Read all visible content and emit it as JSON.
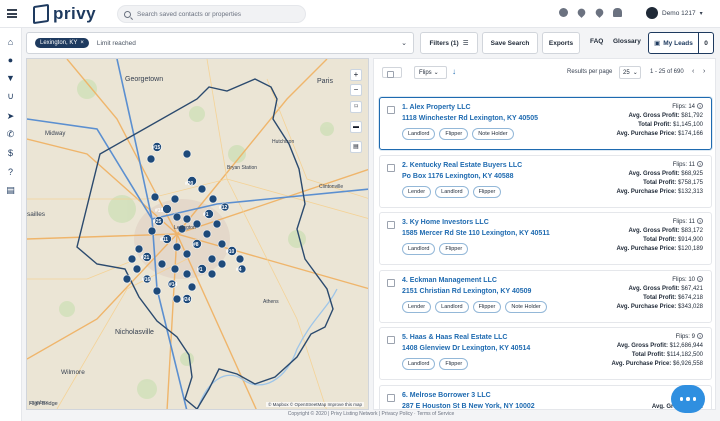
{
  "app": {
    "name": "privy"
  },
  "header": {
    "search_placeholder": "Search saved contacts or properties",
    "user_name": "Demo 1217",
    "icons": [
      "plus-circle-icon",
      "heart-icon",
      "map-pin-icon",
      "bell-icon"
    ]
  },
  "filters": {
    "location_chip": "Lexington, KY",
    "limit_text": "Limit reached",
    "filters_label": "Filters (1)",
    "save_search_label": "Save Search",
    "exports_label": "Exports",
    "faq_label": "FAQ",
    "glossary_label": "Glossary",
    "my_leads_label": "My Leads",
    "my_leads_count": "0"
  },
  "map": {
    "labels": {
      "georgetown": "Georgetown",
      "paris": "Paris",
      "midway": "Midway",
      "hutchison": "Hutchison",
      "bryan_station": "Bryan Station",
      "clintonville": "Clintonville",
      "lexington": "Lexington",
      "athens": "Athens",
      "nicholasville": "Nicholasville",
      "wilmore": "Wilmore",
      "versailles": "sailles",
      "high_bridge": "High Bridge"
    },
    "attribution": "© Mapbox © OpenStreetMap Improve this map",
    "logo_text": "mapbox",
    "markers": [
      "#15",
      "#20",
      "#18",
      "#25",
      "#11",
      "#8",
      "#10",
      "#1",
      "#21",
      "#16",
      "#14",
      "#24",
      "#4",
      "#1",
      "#12"
    ]
  },
  "results": {
    "sort_label": "Flips",
    "results_per_page_label": "Results per page",
    "per_page": "25",
    "range": "1 - 25 of 690",
    "prev": "‹",
    "next": "›"
  },
  "investors": [
    {
      "name": "1. Alex Property LLC",
      "address": "1118 Winchester Rd Lexington, KY 40505",
      "tags": [
        "Landlord",
        "Flipper",
        "Note Holder"
      ],
      "flips": "14",
      "gross": "$81,792",
      "total": "$1,145,100",
      "purchase": "$174,166"
    },
    {
      "name": "2. Kentucky Real Estate Buyers LLC",
      "address": "Po Box 1176 Lexington, KY 40588",
      "tags": [
        "Lender",
        "Landlord",
        "Flipper"
      ],
      "flips": "11",
      "gross": "$68,925",
      "total": "$758,175",
      "purchase": "$132,313"
    },
    {
      "name": "3. Ky Home Investors LLC",
      "address": "1585 Mercer Rd Ste 110 Lexington, KY 40511",
      "tags": [
        "Landlord",
        "Flipper"
      ],
      "flips": "11",
      "gross": "$83,172",
      "total": "$914,900",
      "purchase": "$120,189"
    },
    {
      "name": "4. Eckman Management LLC",
      "address": "2151 Christian Rd Lexington, KY 40509",
      "tags": [
        "Lender",
        "Landlord",
        "Flipper",
        "Note Holder"
      ],
      "flips": "10",
      "gross": "$67,421",
      "total": "$674,218",
      "purchase": "$343,028"
    },
    {
      "name": "5. Haas & Haas Real Estate LLC",
      "address": "1408 Glenview Dr Lexington, KY 40514",
      "tags": [
        "Landlord",
        "Flipper"
      ],
      "flips": "9",
      "gross": "$12,686,944",
      "total": "$114,182,500",
      "purchase": "$6,926,558"
    },
    {
      "name": "6. Melrose Borrower 3 LLC",
      "address": "287 E Houston St B New York, NY 10002",
      "tags": [],
      "flips": "",
      "gross": "",
      "total": "",
      "purchase": ""
    }
  ],
  "stat_labels": {
    "flips": "Flips:",
    "gross": "Avg. Gross Profit:",
    "total": "Total Profit:",
    "purchase": "Avg. Purchase Price:"
  },
  "footer": {
    "text": "Copyright © 2020 | Privy Listing Network | Privacy Policy · Terms of Service"
  },
  "colors": {
    "brand": "#1e3a5f",
    "link": "#1e6ab0",
    "marker": "#1e4a7a",
    "chat": "#2f8fe0"
  }
}
